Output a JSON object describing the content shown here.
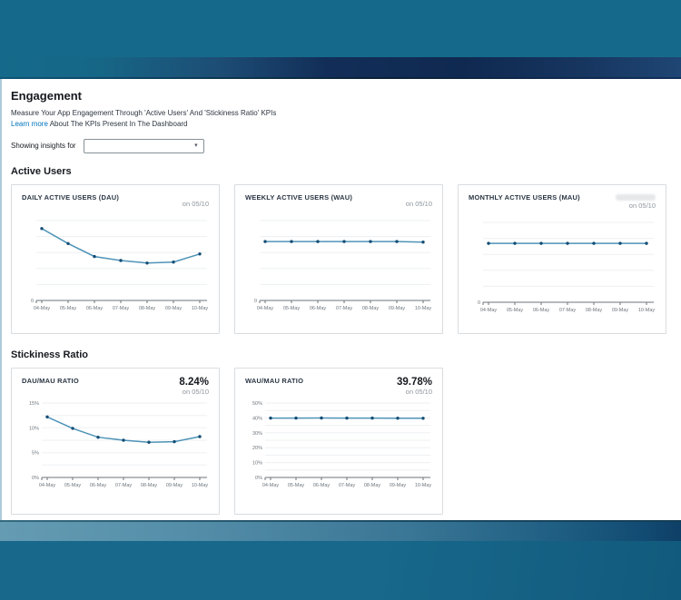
{
  "header": {
    "title": "Engagement",
    "subtitle": "Measure Your App Engagement Through 'Active Users' And 'Stickiness Ratio' KPIs",
    "learn_more": "Learn more",
    "learn_more_suffix": " About The KPIs Present In The Dashboard",
    "filter_label": "Showing insights for",
    "filter_value": ""
  },
  "icons": {
    "dropdown_caret": "▾"
  },
  "sections": [
    {
      "heading": "Active Users"
    },
    {
      "heading": "Stickiness Ratio"
    }
  ],
  "colors": {
    "accent_link": "#0073bb",
    "line": "#4e93b7",
    "dot": "#134d75",
    "gridline": "#edf0f2",
    "axis": "#6b7378",
    "banner_teal": "#156a8b",
    "banner_navy": "#0f2a52"
  },
  "chart_data": [
    {
      "type": "line",
      "title": "DAILY ACTIVE USERS (DAU)",
      "headline_date": "on 05/10",
      "x": [
        "04-May",
        "05-May",
        "06-May",
        "07-May",
        "08-May",
        "09-May",
        "10-May"
      ],
      "values": [
        144,
        114,
        88,
        80,
        75,
        77,
        93
      ],
      "ylim": [
        0,
        160
      ],
      "yticks": [
        {
          "label": "0",
          "value": 0
        }
      ],
      "gridlines": [
        32,
        64,
        96,
        128,
        160
      ],
      "grid": true,
      "legend": "none",
      "margins": {
        "l": 16,
        "r": 4,
        "t": 12,
        "b": 18
      }
    },
    {
      "type": "line",
      "title": "WEEKLY ACTIVE USERS (WAU)",
      "headline_date": "on 05/10",
      "x": [
        "04-May",
        "05-May",
        "06-May",
        "07-May",
        "08-May",
        "09-May",
        "10-May"
      ],
      "values": [
        118,
        118,
        118,
        118,
        118,
        118,
        117
      ],
      "ylim": [
        0,
        160
      ],
      "yticks": [
        {
          "label": "0",
          "value": 0
        }
      ],
      "gridlines": [
        32,
        64,
        96,
        128,
        160
      ],
      "grid": true,
      "legend": "none",
      "margins": {
        "l": 16,
        "r": 4,
        "t": 12,
        "b": 18
      }
    },
    {
      "type": "line",
      "title": "MONTHLY ACTIVE USERS (MAU)",
      "headline_value_redacted": true,
      "headline_date": "on 05/10",
      "x": [
        "04-May",
        "05-May",
        "06-May",
        "07-May",
        "08-May",
        "09-May",
        "10-May"
      ],
      "values": [
        118,
        118,
        118,
        118,
        118,
        118,
        118
      ],
      "ylim": [
        0,
        160
      ],
      "yticks": [
        {
          "label": "0",
          "value": 0
        }
      ],
      "gridlines": [
        32,
        64,
        96,
        128,
        160
      ],
      "grid": true,
      "legend": "none",
      "margins": {
        "l": 16,
        "r": 4,
        "t": 12,
        "b": 18
      }
    },
    {
      "type": "line",
      "title": "DAU/MAU RATIO",
      "headline_value": "8.24%",
      "headline_date": "on 05/10",
      "x": [
        "04-May",
        "05-May",
        "06-May",
        "07-May",
        "08-May",
        "09-May",
        "10-May"
      ],
      "values": [
        12.2,
        9.9,
        8.1,
        7.5,
        7.1,
        7.2,
        8.24
      ],
      "ylim": [
        0,
        15
      ],
      "yticks": [
        {
          "label": "15%",
          "value": 15
        },
        {
          "label": "10%",
          "value": 10
        },
        {
          "label": "5%",
          "value": 5
        },
        {
          "label": "0%",
          "value": 0
        }
      ],
      "gridlines": [
        2.5,
        5,
        7.5,
        10,
        12.5,
        15
      ],
      "grid": true,
      "legend": "none",
      "margins": {
        "l": 22,
        "r": 4,
        "t": 6,
        "b": 16
      }
    },
    {
      "type": "line",
      "title": "WAU/MAU RATIO",
      "headline_value": "39.78%",
      "headline_date": "on 05/10",
      "x": [
        "04-May",
        "05-May",
        "06-May",
        "07-May",
        "08-May",
        "09-May",
        "10-May"
      ],
      "values": [
        39.9,
        39.9,
        39.95,
        39.9,
        39.85,
        39.8,
        39.78
      ],
      "ylim": [
        0,
        50
      ],
      "yticks": [
        {
          "label": "50%",
          "value": 50
        },
        {
          "label": "40%",
          "value": 40
        },
        {
          "label": "30%",
          "value": 30
        },
        {
          "label": "20%",
          "value": 20
        },
        {
          "label": "10%",
          "value": 10
        },
        {
          "label": "0%",
          "value": 0
        }
      ],
      "gridlines": [
        5,
        10,
        15,
        20,
        25,
        30,
        35,
        40,
        45,
        50
      ],
      "grid": true,
      "legend": "none",
      "margins": {
        "l": 22,
        "r": 4,
        "t": 6,
        "b": 16
      }
    }
  ]
}
